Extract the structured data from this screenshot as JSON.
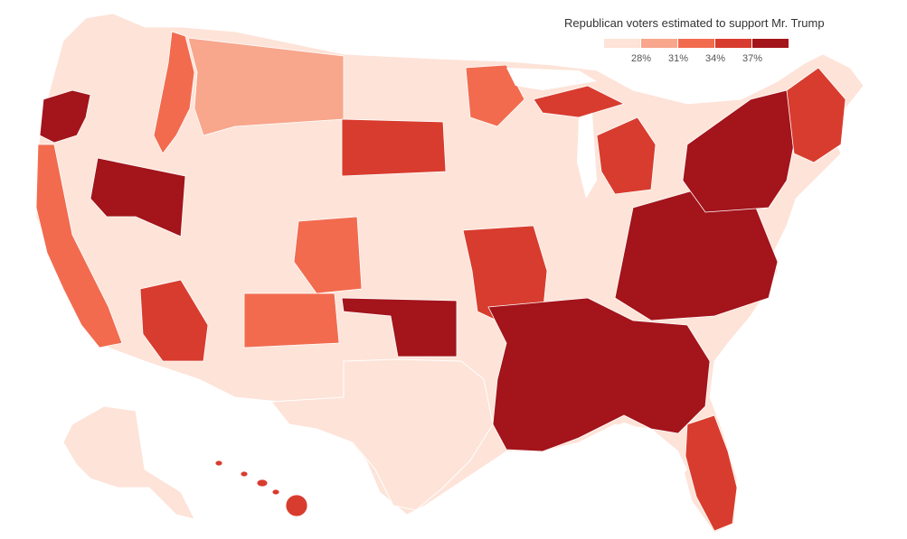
{
  "legend": {
    "title": "Republican voters estimated to support Mr. Trump",
    "bins": [
      "#fde3d8",
      "#f8a68c",
      "#f26b4f",
      "#d83c2e",
      "#a3141b"
    ],
    "ticks": [
      "28%",
      "31%",
      "34%",
      "37%"
    ]
  },
  "regions": {
    "west": "#fde3d8",
    "pacific_coast": "#f26b4f",
    "oregon_west": "#a3141b",
    "wyoming": "#a3141b",
    "montana": "#f8a68c",
    "idaho_panhandle": "#f26b4f",
    "dakotas_south": "#d83c2e",
    "colorado_nm": "#f26b4f",
    "arizona_south": "#d83c2e",
    "oklahoma": "#a3141b",
    "arkansas_missouri": "#d83c2e",
    "deep_south": "#a3141b",
    "appalachia": "#a3141b",
    "northeast": "#a3141b",
    "new_england": "#d83c2e",
    "florida": "#d83c2e",
    "texas": "#fde3d8",
    "midwest": "#fde3d8",
    "hawaii": "#d83c2e",
    "alaska": "#fde3d8"
  }
}
